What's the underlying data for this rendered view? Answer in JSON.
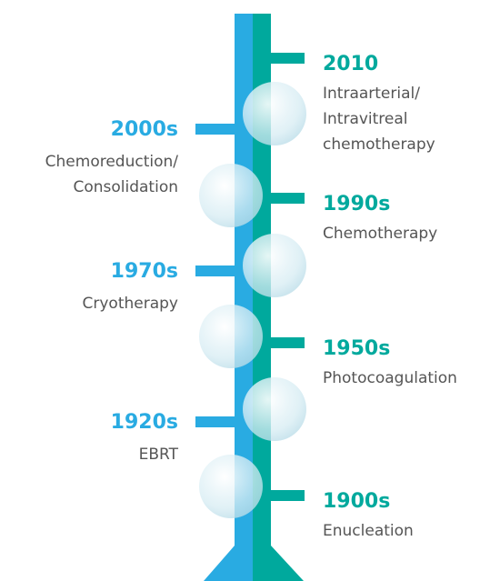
{
  "left": [
    {
      "year": "2000s",
      "description": [
        "Chemoreduction/",
        "Consolidation"
      ]
    },
    {
      "year": "1970s",
      "description": [
        "Cryotherapy"
      ]
    },
    {
      "year": "1920s",
      "description": [
        "EBRT"
      ]
    }
  ],
  "right": [
    {
      "year": "2010",
      "description": [
        "Intraarterial/",
        "Intravitreal",
        "chemotherapy"
      ]
    },
    {
      "year": "1990s",
      "description": [
        "Chemotherapy"
      ]
    },
    {
      "year": "1950s",
      "description": [
        "Photocoagulation"
      ]
    },
    {
      "year": "1900s",
      "description": [
        "Enucleation"
      ]
    }
  ]
}
